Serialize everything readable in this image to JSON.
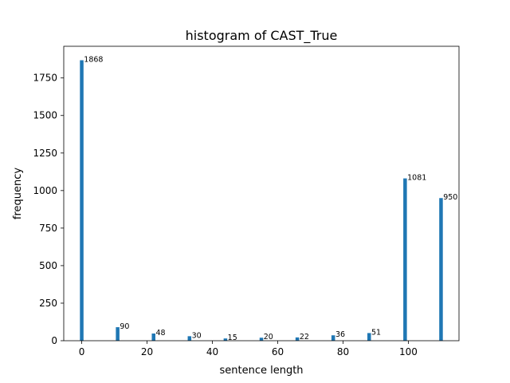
{
  "chart_data": {
    "type": "bar",
    "title": "histogram of CAST_True",
    "xlabel": "sentence length",
    "ylabel": "frequency",
    "xlim": [
      -5.5,
      115.5
    ],
    "ylim": [
      0,
      1961
    ],
    "x_ticks": [
      0,
      20,
      40,
      60,
      80,
      100
    ],
    "y_ticks": [
      0,
      250,
      500,
      750,
      1000,
      1250,
      1500,
      1750
    ],
    "bar_width": 1.1,
    "grid": false,
    "legend": "none",
    "color": "#1f77b4",
    "x": [
      0,
      11,
      22,
      33,
      44,
      55,
      66,
      77,
      88,
      99,
      110
    ],
    "values": [
      1868,
      90,
      48,
      30,
      15,
      20,
      22,
      36,
      51,
      1081,
      950
    ],
    "labels": [
      "1868",
      "90",
      "48",
      "30",
      "15",
      "20",
      "22",
      "36",
      "51",
      "1081",
      "950"
    ]
  }
}
